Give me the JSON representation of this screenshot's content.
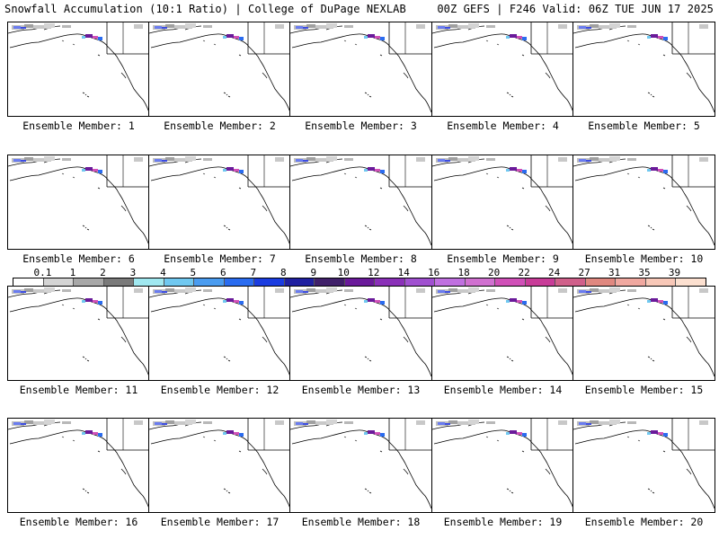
{
  "header": {
    "title_left": "Snowfall Accumulation (10:1 Ratio) | College of DuPage NEXLAB",
    "title_right": "00Z GEFS | F246 Valid: 06Z TUE JUN 17 2025"
  },
  "colorbar": {
    "labels": [
      "0.1",
      "1",
      "2",
      "3",
      "4",
      "5",
      "6",
      "7",
      "8",
      "9",
      "10",
      "12",
      "14",
      "16",
      "18",
      "20",
      "22",
      "24",
      "27",
      "31",
      "35",
      "39"
    ],
    "colors": [
      "#ffffff",
      "#d4d4d4",
      "#a8a8a8",
      "#7a7a7a",
      "#a0e8f0",
      "#70c8f0",
      "#4a9cf0",
      "#2a6cf0",
      "#1a3ce0",
      "#2020a0",
      "#40206a",
      "#6a1a9a",
      "#8a30b8",
      "#a050d0",
      "#c070e0",
      "#d070d0",
      "#d050b8",
      "#c83c98",
      "#d0608a",
      "#e08880",
      "#f0a8a0",
      "#f8c8b8",
      "#fce0d0"
    ]
  },
  "panels": [
    {
      "label": "Ensemble Member: 1"
    },
    {
      "label": "Ensemble Member: 2"
    },
    {
      "label": "Ensemble Member: 3"
    },
    {
      "label": "Ensemble Member: 4"
    },
    {
      "label": "Ensemble Member: 5"
    },
    {
      "label": "Ensemble Member: 6"
    },
    {
      "label": "Ensemble Member: 7"
    },
    {
      "label": "Ensemble Member: 8"
    },
    {
      "label": "Ensemble Member: 9"
    },
    {
      "label": "Ensemble Member: 10"
    },
    {
      "label": "Ensemble Member: 11"
    },
    {
      "label": "Ensemble Member: 12"
    },
    {
      "label": "Ensemble Member: 13"
    },
    {
      "label": "Ensemble Member: 14"
    },
    {
      "label": "Ensemble Member: 15"
    },
    {
      "label": "Ensemble Member: 16"
    },
    {
      "label": "Ensemble Member: 17"
    },
    {
      "label": "Ensemble Member: 18"
    },
    {
      "label": "Ensemble Member: 19"
    },
    {
      "label": "Ensemble Member: 20"
    }
  ]
}
